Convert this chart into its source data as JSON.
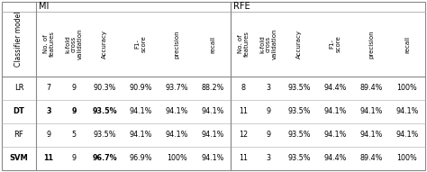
{
  "col_headers": [
    "No. of\nfeatures",
    "k-fold\ncross\nvalidation",
    "Accuracy",
    "F1-\nscore",
    "precision",
    "recall"
  ],
  "row_labels": [
    "LR",
    "DT",
    "RF",
    "SVM"
  ],
  "mi_data": [
    [
      "7",
      "9",
      "90.3%",
      "90.9%",
      "93.7%",
      "88.2%"
    ],
    [
      "3",
      "9",
      "93.5%",
      "94.1%",
      "94.1%",
      "94.1%"
    ],
    [
      "9",
      "5",
      "93.5%",
      "94.1%",
      "94.1%",
      "94.1%"
    ],
    [
      "11",
      "9",
      "96.7%",
      "96.9%",
      "100%",
      "94.1%"
    ]
  ],
  "rfe_data": [
    [
      "8",
      "3",
      "93.5%",
      "94.4%",
      "89.4%",
      "100%"
    ],
    [
      "11",
      "9",
      "93.5%",
      "94.1%",
      "94.1%",
      "94.1%"
    ],
    [
      "12",
      "9",
      "93.5%",
      "94.1%",
      "94.1%",
      "94.1%"
    ],
    [
      "11",
      "3",
      "93.5%",
      "94.4%",
      "89.4%",
      "100%"
    ]
  ],
  "bold_mi": [
    [
      false,
      false,
      false,
      false,
      false,
      false
    ],
    [
      true,
      true,
      true,
      false,
      false,
      false
    ],
    [
      false,
      false,
      false,
      false,
      false,
      false
    ],
    [
      true,
      false,
      true,
      false,
      false,
      false
    ]
  ],
  "bold_row_label": [
    false,
    true,
    false,
    true
  ],
  "section_mi": "MI",
  "section_rfe": "RFE",
  "classifier_label": "Classifier model",
  "bg_color": "#ffffff",
  "text_color": "#000000",
  "line_color": "#aaaaaa",
  "thick_line_color": "#888888"
}
